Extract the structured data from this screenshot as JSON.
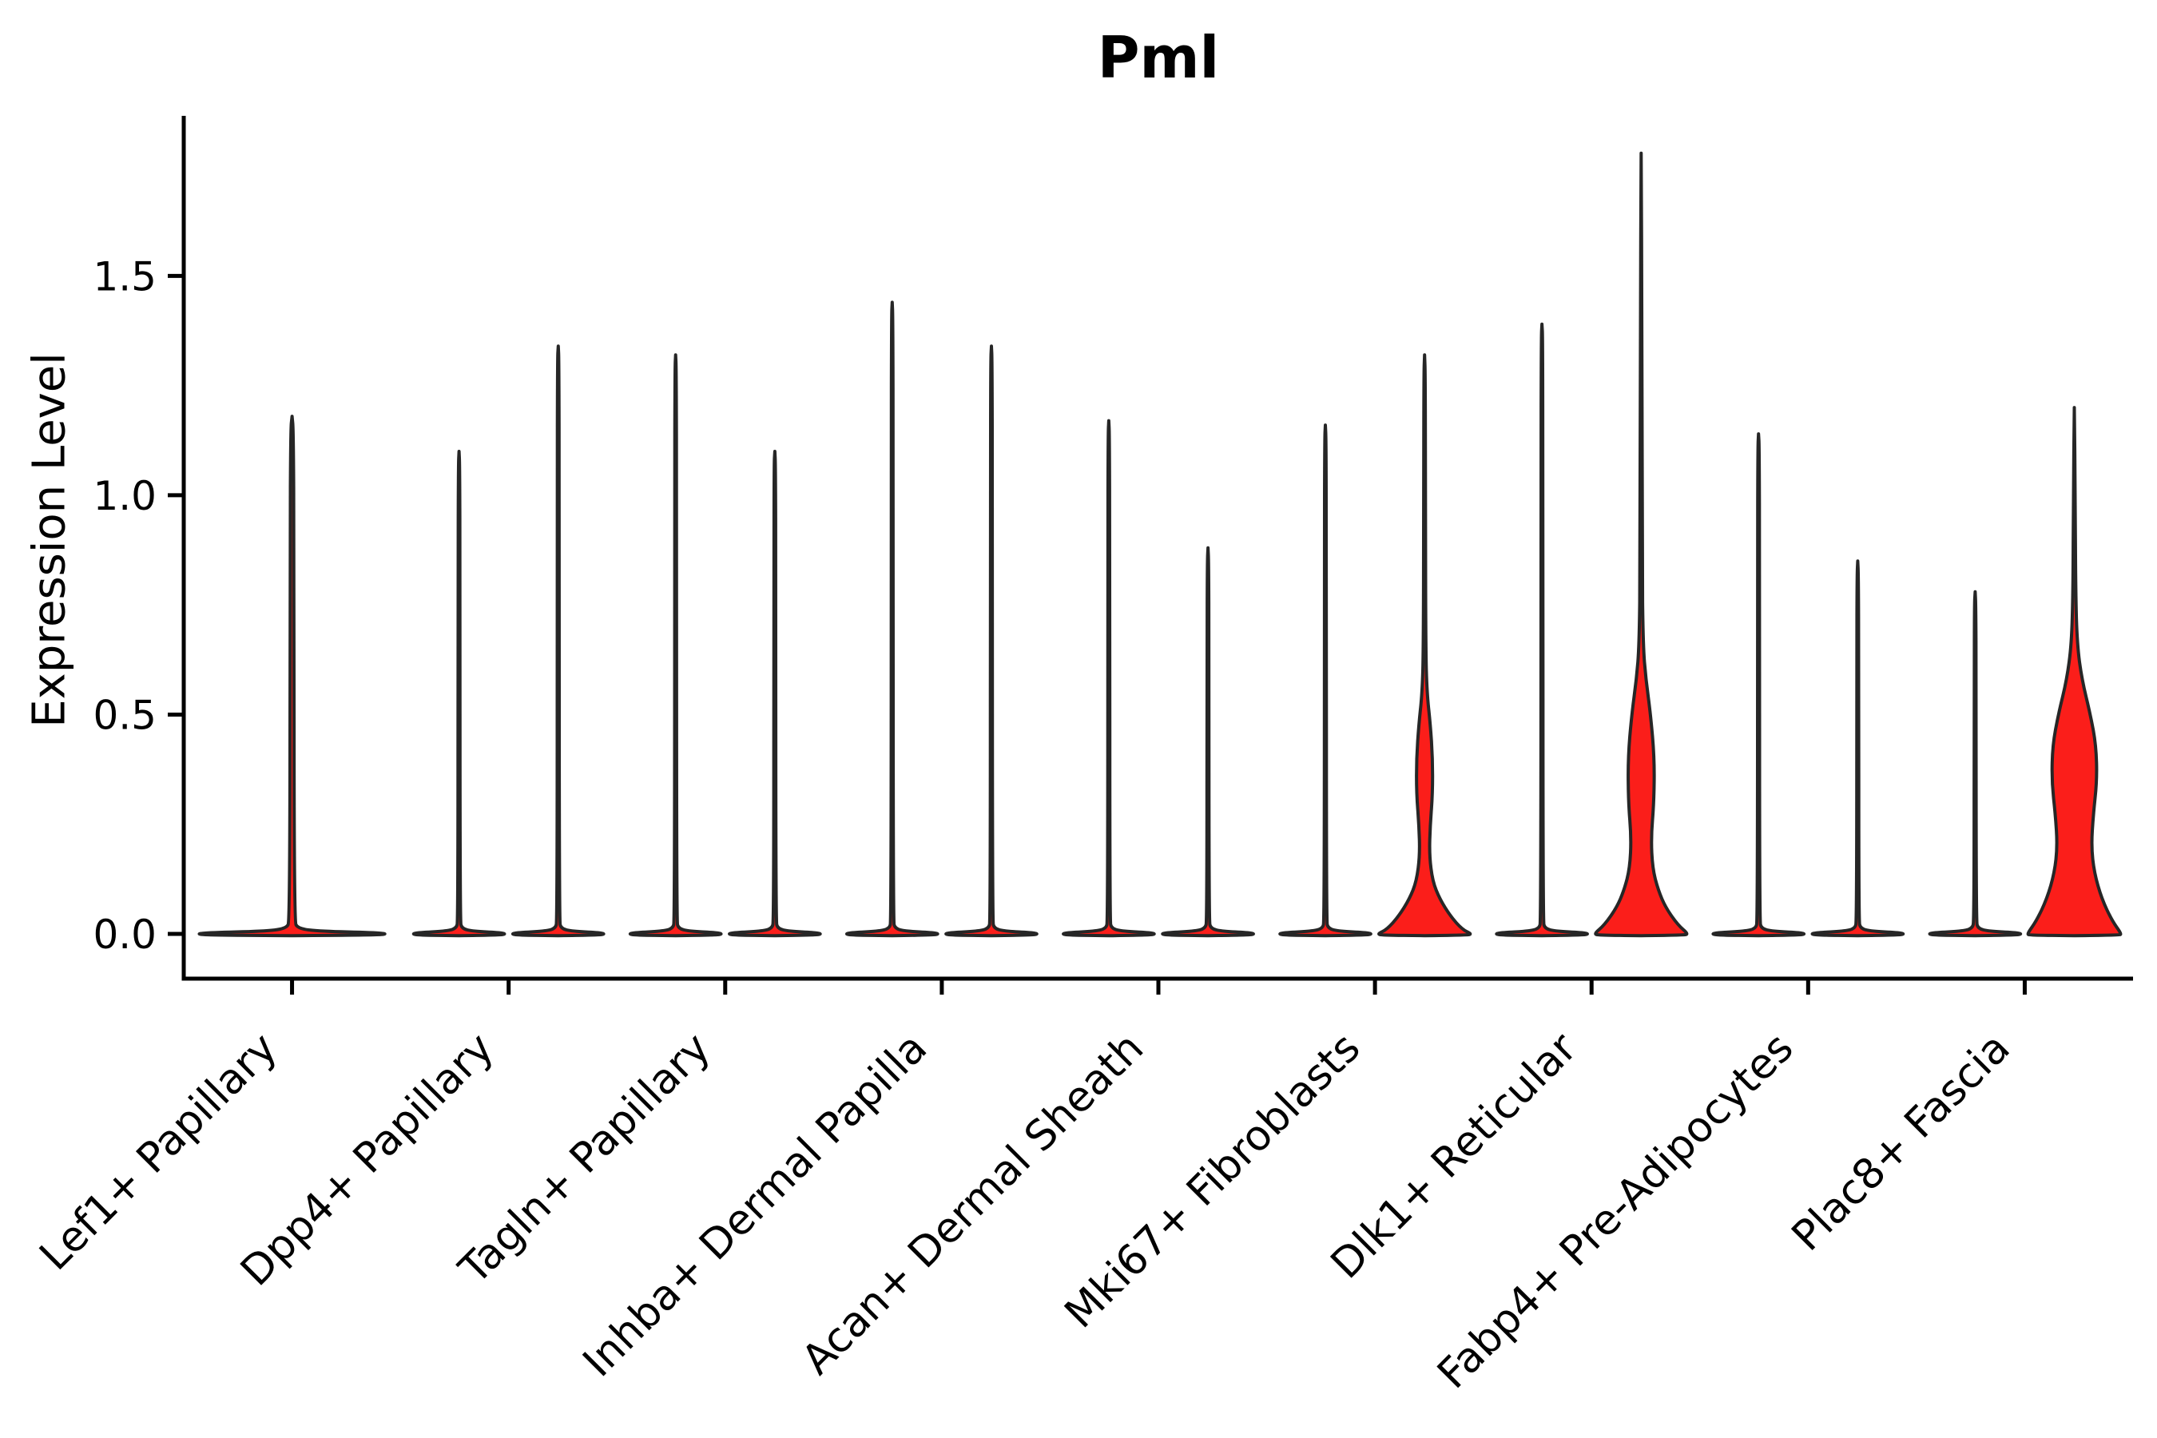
{
  "chart_data": {
    "type": "violin",
    "title": "Pml",
    "ylabel": "Expression Level",
    "xlabel": "",
    "ylim": [
      -0.102,
      1.865
    ],
    "grid": false,
    "legend": null,
    "yticks": [
      {
        "value": 0.0,
        "label": "0.0"
      },
      {
        "value": 0.5,
        "label": "0.5"
      },
      {
        "value": 1.0,
        "label": "1.0"
      },
      {
        "value": 1.5,
        "label": "1.5"
      }
    ],
    "categories": [
      "Lef1+ Papillary",
      "Dpp4+ Papillary",
      "Tagln+ Papillary",
      "Inhba+ Dermal Papilla",
      "Acan+ Dermal Sheath",
      "Mki67+ Fibroblasts",
      "Dlk1+ Reticular",
      "Fabp4+ Pre-Adipocytes",
      "Plac8+ Fascia"
    ],
    "violins": [
      {
        "category": "Lef1+ Papillary",
        "position": "center",
        "max": 1.18
      },
      {
        "category": "Dpp4+ Papillary",
        "position": "left",
        "max": 1.1
      },
      {
        "category": "Dpp4+ Papillary",
        "position": "right",
        "max": 1.34
      },
      {
        "category": "Tagln+ Papillary",
        "position": "left",
        "max": 1.32
      },
      {
        "category": "Tagln+ Papillary",
        "position": "right",
        "max": 1.1
      },
      {
        "category": "Inhba+ Dermal Papilla",
        "position": "left",
        "max": 1.44
      },
      {
        "category": "Inhba+ Dermal Papilla",
        "position": "right",
        "max": 1.34
      },
      {
        "category": "Acan+ Dermal Sheath",
        "position": "left",
        "max": 1.17
      },
      {
        "category": "Acan+ Dermal Sheath",
        "position": "right",
        "max": 0.88
      },
      {
        "category": "Mki67+ Fibroblasts",
        "position": "left",
        "max": 1.16
      },
      {
        "category": "Mki67+ Fibroblasts",
        "position": "right",
        "max": 1.32,
        "profile": [
          [
            -0.004,
            0
          ],
          [
            -0.003,
            0.9
          ],
          [
            0,
            1.0
          ],
          [
            0.01,
            0.8
          ],
          [
            0.04,
            0.55
          ],
          [
            0.08,
            0.32
          ],
          [
            0.12,
            0.17
          ],
          [
            0.18,
            0.1
          ],
          [
            0.25,
            0.12
          ],
          [
            0.32,
            0.17
          ],
          [
            0.4,
            0.17
          ],
          [
            0.48,
            0.12
          ],
          [
            0.55,
            0.05
          ],
          [
            0.65,
            0.025
          ],
          [
            0.95,
            0.02
          ],
          [
            1.28,
            0.015
          ],
          [
            1.32,
            0
          ]
        ]
      },
      {
        "category": "Dlk1+ Reticular",
        "position": "left",
        "max": 1.39
      },
      {
        "category": "Dlk1+ Reticular",
        "position": "right",
        "max": 1.78,
        "profile": [
          [
            -0.004,
            0
          ],
          [
            -0.003,
            0.9
          ],
          [
            0,
            1.0
          ],
          [
            0.02,
            0.78
          ],
          [
            0.06,
            0.52
          ],
          [
            0.1,
            0.36
          ],
          [
            0.15,
            0.24
          ],
          [
            0.22,
            0.21
          ],
          [
            0.3,
            0.27
          ],
          [
            0.4,
            0.28
          ],
          [
            0.5,
            0.2
          ],
          [
            0.58,
            0.1
          ],
          [
            0.66,
            0.04
          ],
          [
            0.85,
            0.022
          ],
          [
            1.4,
            0.018
          ],
          [
            1.78,
            0
          ]
        ]
      },
      {
        "category": "Fabp4+ Pre-Adipocytes",
        "position": "left",
        "max": 1.14
      },
      {
        "category": "Fabp4+ Pre-Adipocytes",
        "position": "right",
        "max": 0.85
      },
      {
        "category": "Plac8+ Fascia",
        "position": "left",
        "max": 0.78
      },
      {
        "category": "Plac8+ Fascia",
        "position": "right",
        "max": 1.2,
        "profile": [
          [
            -0.004,
            0
          ],
          [
            -0.003,
            0.95
          ],
          [
            0,
            1.0
          ],
          [
            0.03,
            0.8
          ],
          [
            0.08,
            0.58
          ],
          [
            0.14,
            0.42
          ],
          [
            0.2,
            0.36
          ],
          [
            0.27,
            0.4
          ],
          [
            0.35,
            0.48
          ],
          [
            0.43,
            0.46
          ],
          [
            0.5,
            0.34
          ],
          [
            0.58,
            0.16
          ],
          [
            0.66,
            0.06
          ],
          [
            0.78,
            0.028
          ],
          [
            1.0,
            0.02
          ],
          [
            1.2,
            0
          ]
        ]
      }
    ],
    "colors": {
      "violin_fill": "#fb1e1a",
      "violin_edge": "#262626",
      "axis": "#000000",
      "text": "#000000",
      "background": "#ffffff"
    }
  }
}
